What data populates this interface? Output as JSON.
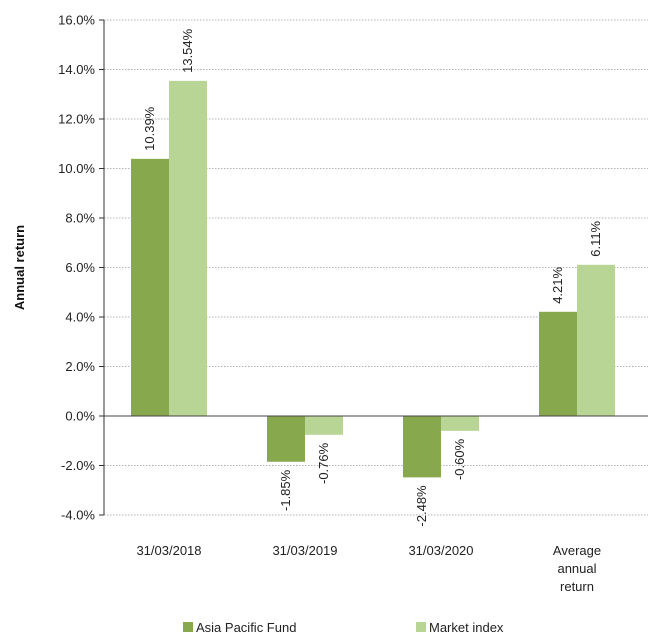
{
  "chart_data": {
    "type": "bar",
    "title": "",
    "xlabel": "",
    "ylabel": "Annual return",
    "ylim": [
      -4.0,
      16.0
    ],
    "ytick_step": 2.0,
    "grid": true,
    "legend_position": "bottom",
    "categories": [
      [
        "31/03/2018"
      ],
      [
        "31/03/2019"
      ],
      [
        "31/03/2020"
      ],
      [
        "Average",
        "annual",
        "return"
      ]
    ],
    "series": [
      {
        "name": "Asia Pacific Fund",
        "color": "#88a84e",
        "values": [
          10.39,
          -1.85,
          -2.48,
          4.21
        ],
        "labels": [
          "10.39%",
          "-1.85%",
          "-2.48%",
          "4.21%"
        ]
      },
      {
        "name": "Market index",
        "color": "#b8d596",
        "values": [
          13.54,
          -0.76,
          -0.6,
          6.11
        ],
        "labels": [
          "13.54%",
          "-0.76%",
          "-0.60%",
          "6.11%"
        ]
      }
    ]
  }
}
